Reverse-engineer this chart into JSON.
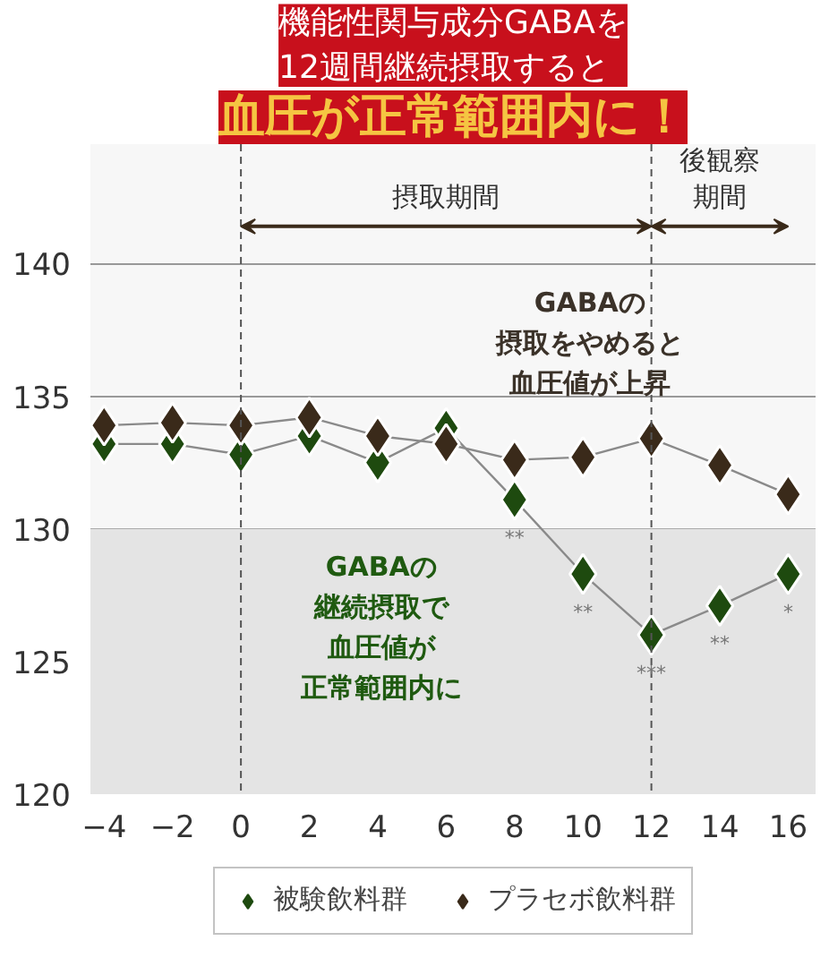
{
  "chart_data": {
    "type": "line",
    "title": "機能性関与成分GABAを12週間継続摂取すると",
    "subtitle": "血圧が正常範囲内に！",
    "x": [
      -4,
      -2,
      0,
      2,
      4,
      6,
      8,
      10,
      12,
      14,
      16
    ],
    "series": [
      {
        "name": "被験飲料群",
        "color": "#1e4a0f",
        "values": [
          133.2,
          133.2,
          132.8,
          133.5,
          132.5,
          133.8,
          131.1,
          128.3,
          126.0,
          127.1,
          128.3
        ]
      },
      {
        "name": "プラセボ飲料群",
        "color": "#3a2a1a",
        "values": [
          133.9,
          134.0,
          133.9,
          134.2,
          133.5,
          133.2,
          132.6,
          132.7,
          133.4,
          132.4,
          131.3
        ]
      }
    ],
    "xlim": [
      -4.4,
      16.8
    ],
    "ylim": [
      120,
      144.5
    ],
    "xticks": [
      -4,
      -2,
      0,
      2,
      4,
      6,
      8,
      10,
      12,
      14,
      16
    ],
    "yticks": [
      120,
      125,
      130,
      135,
      140
    ],
    "grid": "y",
    "legend": "bottom",
    "marker": "diamond",
    "line_style": "solid",
    "ref_lines": [
      {
        "axis": "x",
        "value": 0,
        "label": null,
        "color": "#555555",
        "line_style": "dashed"
      },
      {
        "axis": "x",
        "value": 12,
        "label": null,
        "color": "#555555",
        "line_style": "dashed"
      }
    ],
    "bands": [
      {
        "axis": "y",
        "from": 120,
        "to": 130,
        "label": null,
        "color": "#e4e4e4"
      }
    ],
    "annotations": [
      {
        "text": "**",
        "x": 8,
        "y": 131.1
      },
      {
        "text": "**",
        "x": 10,
        "y": 128.3
      },
      {
        "text": "***",
        "x": 12,
        "y": 126.0
      },
      {
        "text": "**",
        "x": 14,
        "y": 127.1
      },
      {
        "text": "*",
        "x": 16,
        "y": 128.3
      },
      "GABAの摂取をやめると血圧値が上昇",
      "GABAの継続摂取で血圧値が正常範囲内に",
      "摂取期間",
      "後観察期間"
    ]
  }
}
